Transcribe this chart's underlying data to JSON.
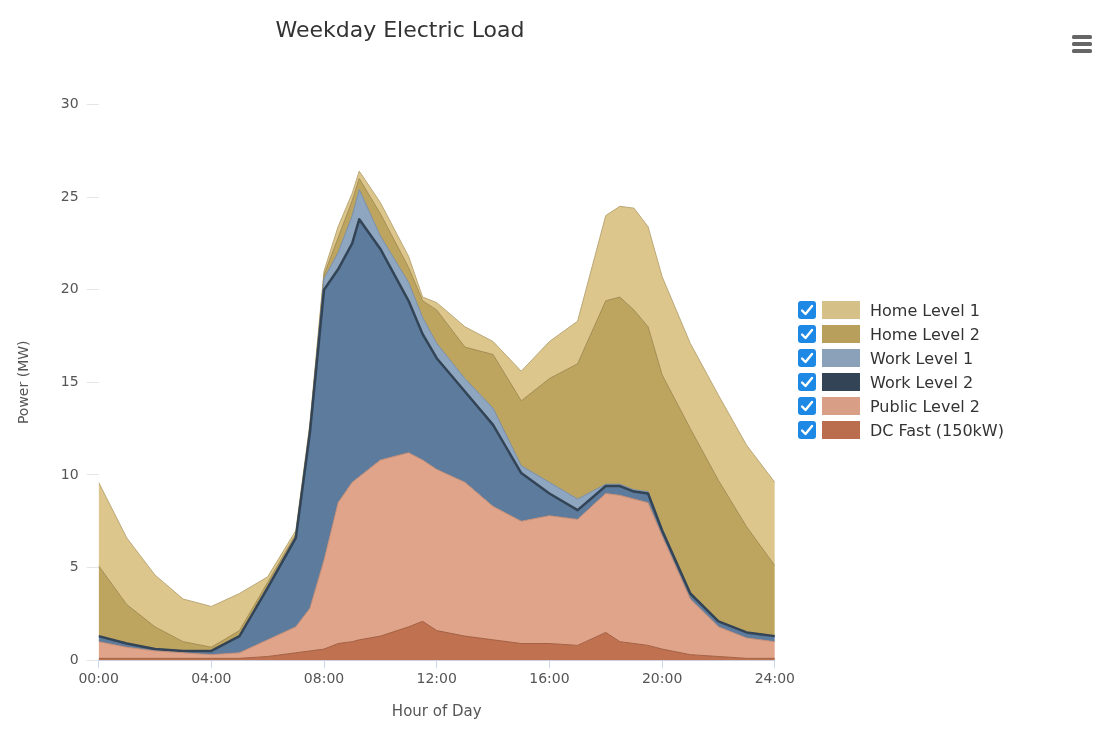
{
  "chart_data": {
    "type": "area",
    "title": "Weekday Electric Load",
    "xlabel": "Hour of Day",
    "ylabel": "Power (MW)",
    "stacked": true,
    "legend": "right",
    "grid": false,
    "marker": "none",
    "x": [
      0,
      1,
      2,
      3,
      4,
      5,
      6,
      7,
      7.5,
      8,
      8.5,
      9,
      9.25,
      10,
      11,
      11.5,
      12,
      13,
      14,
      15,
      16,
      17,
      18,
      18.5,
      19,
      19.5,
      20,
      21,
      22,
      23,
      24
    ],
    "xlim": [
      0,
      24
    ],
    "xticks": [
      {
        "value": 0,
        "label": "00:00"
      },
      {
        "value": 4,
        "label": "04:00"
      },
      {
        "value": 8,
        "label": "08:00"
      },
      {
        "value": 12,
        "label": "12:00"
      },
      {
        "value": 16,
        "label": "16:00"
      },
      {
        "value": 20,
        "label": "20:00"
      },
      {
        "value": 24,
        "label": "24:00"
      }
    ],
    "ylim": [
      0,
      30
    ],
    "yticks": [
      0,
      5,
      10,
      15,
      20,
      25,
      30
    ],
    "series": [
      {
        "name": "DC Fast (150kW)",
        "color": "#c0714f",
        "values": [
          0.1,
          0.1,
          0.1,
          0.1,
          0.1,
          0.1,
          0.2,
          0.4,
          0.5,
          0.6,
          0.9,
          1.0,
          1.1,
          1.3,
          1.8,
          2.1,
          1.6,
          1.3,
          1.1,
          0.9,
          0.9,
          0.8,
          1.5,
          1.0,
          0.9,
          0.8,
          0.6,
          0.3,
          0.2,
          0.1,
          0.1
        ]
      },
      {
        "name": "Public Level 2",
        "color": "#e0a48a",
        "values": [
          0.9,
          0.6,
          0.4,
          0.3,
          0.2,
          0.3,
          0.9,
          1.4,
          2.3,
          4.8,
          7.6,
          8.6,
          8.8,
          9.5,
          9.4,
          8.7,
          8.7,
          8.3,
          7.2,
          6.6,
          6.9,
          6.8,
          7.5,
          7.9,
          7.8,
          7.7,
          6.1,
          3.0,
          1.6,
          1.1,
          0.9
        ]
      },
      {
        "name": "Work Level 2",
        "color": "#5c7b9d",
        "values": [
          0.3,
          0.2,
          0.1,
          0.1,
          0.2,
          0.9,
          2.8,
          4.8,
          9.5,
          14.6,
          12.6,
          12.9,
          13.9,
          11.4,
          8.2,
          6.8,
          6.0,
          4.9,
          4.4,
          2.6,
          1.2,
          0.5,
          0.4,
          0.5,
          0.4,
          0.5,
          0.3,
          0.3,
          0.3,
          0.3,
          0.3
        ]
      },
      {
        "name": "Work Level 1",
        "color": "#8fa6c0",
        "values": [
          0,
          0,
          0,
          0,
          0,
          0,
          0.1,
          0.1,
          0.2,
          0.6,
          0.9,
          1.5,
          1.6,
          0.7,
          1.0,
          0.9,
          0.8,
          0.7,
          0.9,
          0.4,
          0.6,
          0.6,
          0.1,
          0.1,
          0.1,
          0.1,
          0.1,
          0,
          0,
          0,
          0
        ]
      },
      {
        "name": "Home Level 2",
        "color": "#bea55f",
        "values": [
          3.8,
          2.1,
          1.2,
          0.5,
          0.2,
          0.3,
          0.2,
          0.1,
          0.1,
          0.2,
          0.8,
          0.8,
          0.6,
          1.2,
          0.8,
          0.9,
          1.8,
          1.7,
          2.9,
          3.5,
          5.6,
          7.3,
          9.9,
          10.1,
          9.7,
          8.9,
          8.3,
          8.9,
          7.6,
          5.7,
          3.8
        ]
      },
      {
        "name": "Home Level 1",
        "color": "#dcc68c",
        "values": [
          4.5,
          3.6,
          2.8,
          2.3,
          2.2,
          2.0,
          0.3,
          0.2,
          0.2,
          0.2,
          0.6,
          0.4,
          0.4,
          0.6,
          0.6,
          0.2,
          0.4,
          1.1,
          0.7,
          1.6,
          2.0,
          2.3,
          4.6,
          4.9,
          5.5,
          5.4,
          5.3,
          4.6,
          4.6,
          4.4,
          4.5
        ]
      }
    ]
  }
}
